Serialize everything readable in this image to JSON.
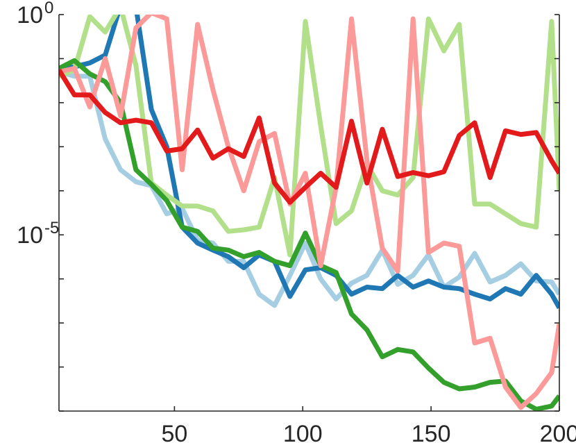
{
  "chart_data": {
    "type": "line",
    "title": "",
    "xlabel": "",
    "ylabel": "",
    "xlim": [
      5,
      200
    ],
    "ylim": [
      1e-09,
      1
    ],
    "yscale": "log",
    "grid": false,
    "legend": "none",
    "x_ticks": [
      {
        "value": 50,
        "label": "50"
      },
      {
        "value": 100,
        "label": "100"
      },
      {
        "value": 150,
        "label": "150"
      },
      {
        "value": 200,
        "label": "200"
      }
    ],
    "y_ticks": [
      {
        "value": 1,
        "base": "10",
        "exponent": "0"
      },
      {
        "value": 1e-05,
        "base": "10",
        "exponent": "-5"
      }
    ],
    "x": [
      5,
      11,
      17,
      23,
      29,
      35,
      41,
      47,
      53,
      59,
      65,
      71,
      77,
      83,
      89,
      95,
      101,
      107,
      113,
      119,
      125,
      131,
      137,
      143,
      149,
      155,
      161,
      167,
      173,
      179,
      185,
      191,
      197,
      200
    ],
    "series": [
      {
        "color": "#a6cee3",
        "values": [
          0.05,
          0.04,
          0.04,
          0.0015,
          0.0003,
          0.00016,
          0.00013,
          3e-05,
          4e-05,
          7.5e-06,
          6.5e-06,
          2.5e-06,
          2.5e-06,
          4.5e-07,
          2.5e-07,
          1.2e-06,
          6.5e-06,
          1e-06,
          3.5e-07,
          8e-07,
          1.2e-06,
          4.5e-06,
          7.5e-07,
          1.2e-06,
          3.5e-06,
          6.5e-07,
          1.1e-06,
          3.8e-06,
          8.5e-07,
          1.2e-06,
          2.2e-06,
          9e-07,
          8.5e-07,
          4.5e-07
        ]
      },
      {
        "color": "#1f78b4",
        "values": [
          0.06,
          0.065,
          0.08,
          0.12,
          1.6,
          1.5,
          0.007,
          0.001,
          1.5e-05,
          6.5e-06,
          4.5e-06,
          3.2e-06,
          1.8e-06,
          3.5e-06,
          2.5e-06,
          4e-07,
          1.6e-06,
          1.8e-06,
          1.2e-06,
          4.5e-07,
          6.5e-07,
          6e-07,
          1.2e-06,
          6.5e-07,
          9e-07,
          6.5e-07,
          6e-07,
          4.5e-07,
          3.5e-07,
          6e-07,
          4.5e-07,
          1.2e-06,
          4.5e-07,
          2.2e-07
        ]
      },
      {
        "color": "#b2df8a",
        "values": [
          0.04,
          0.055,
          0.9,
          0.4,
          1.5,
          0.07,
          0.00015,
          8e-05,
          4.5e-05,
          4.5e-05,
          3.5e-05,
          1.2e-05,
          1.3e-05,
          1.5e-05,
          0.0002,
          3.5e-06,
          0.7,
          0.003,
          1.8e-05,
          3.5e-05,
          0.0004,
          0.0001,
          8e-05,
          0.0002,
          0.8,
          0.15,
          0.6,
          5e-05,
          5e-05,
          3e-05,
          1.8e-05,
          1.5e-05,
          0.7,
          0.0001
        ]
      },
      {
        "color": "#33a02c",
        "values": [
          0.06,
          0.09,
          0.045,
          0.03,
          0.01,
          0.0003,
          0.00014,
          6e-05,
          1.5e-05,
          1.2e-05,
          5e-06,
          4.5e-06,
          3.2e-06,
          4e-06,
          2.5e-06,
          2e-06,
          1.1e-05,
          2e-06,
          1.4e-06,
          1.6e-07,
          7e-08,
          1.7e-08,
          2.5e-08,
          2.2e-08,
          9.5e-09,
          4.5e-09,
          3.2e-09,
          3.5e-09,
          4.5e-09,
          4.8e-09,
          1.7e-09,
          1.1e-09,
          1.3e-09,
          2.2e-09
        ]
      },
      {
        "color": "#fb9a99",
        "values": [
          0.05,
          0.06,
          0.008,
          0.1,
          0.005,
          0.5,
          1.1,
          0.8,
          0.0003,
          0.6,
          0.02,
          0.001,
          0.0001,
          0.0013,
          0.002,
          5e-05,
          0.00025,
          2e-06,
          0.00012,
          0.8,
          0.0005,
          5e-06,
          1.5e-06,
          0.8,
          4e-06,
          6.5e-06,
          5.5e-06,
          3.5e-08,
          4.5e-08,
          3.5e-09,
          1.2e-09,
          2.5e-09,
          7.5e-09,
          9.5e-08
        ]
      },
      {
        "color": "#e31a1c",
        "values": [
          0.055,
          0.015,
          0.015,
          0.006,
          0.0035,
          0.004,
          0.0035,
          0.0008,
          0.0009,
          0.0024,
          0.00055,
          0.0009,
          0.0006,
          0.0045,
          0.00015,
          5.5e-05,
          0.00012,
          0.00025,
          0.00012,
          0.0038,
          0.00015,
          0.0025,
          0.00021,
          0.00026,
          0.00022,
          0.00027,
          0.0018,
          0.0035,
          0.0002,
          0.0023,
          0.0019,
          0.0021,
          0.00048,
          0.00025
        ]
      }
    ]
  }
}
